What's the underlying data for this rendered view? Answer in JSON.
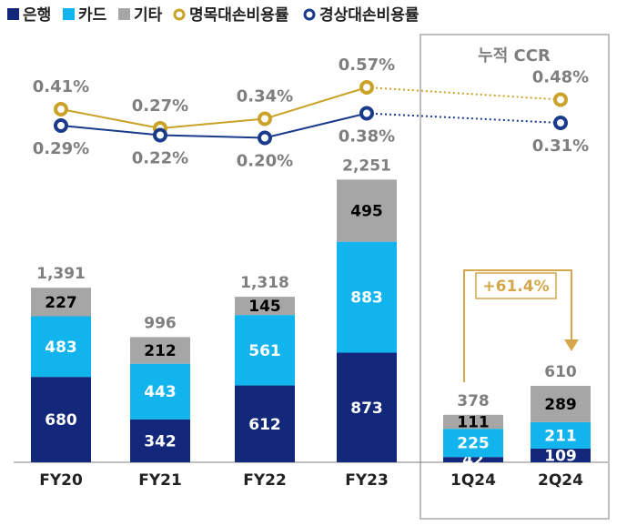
{
  "chart_data": {
    "type": "bar",
    "stacked": true,
    "categories": [
      "FY20",
      "FY21",
      "FY22",
      "FY23",
      "1Q24",
      "2Q24"
    ],
    "series": [
      {
        "name": "은행",
        "color": "#13287a",
        "values": [
          680,
          342,
          612,
          873,
          42,
          109
        ]
      },
      {
        "name": "카드",
        "color": "#12b4ee",
        "values": [
          483,
          443,
          561,
          883,
          225,
          211
        ]
      },
      {
        "name": "기타",
        "color": "#a6a6a6",
        "values": [
          227,
          212,
          145,
          495,
          111,
          289
        ]
      }
    ],
    "totals": {
      "values": [
        1391,
        996,
        1318,
        2251,
        378,
        610
      ],
      "value_labels": [
        "1,391",
        "996",
        "1,318",
        "2,251",
        "378",
        "610"
      ]
    },
    "lines": [
      {
        "name": "명목대손비용률",
        "color": "#c9a227",
        "values": [
          0.41,
          0.27,
          0.34,
          0.57,
          null,
          0.48
        ],
        "value_labels": [
          "0.41%",
          "0.27%",
          "0.34%",
          "0.57%",
          null,
          "0.48%"
        ]
      },
      {
        "name": "경상대손비용률",
        "color": "#1a3a8c",
        "values": [
          0.29,
          0.22,
          0.2,
          0.38,
          null,
          0.31
        ],
        "value_labels": [
          "0.29%",
          "0.22%",
          "0.20%",
          "0.38%",
          null,
          "0.31%"
        ]
      }
    ],
    "annotations": {
      "box_title": "누적 CCR",
      "growth": "+61.4%"
    }
  }
}
